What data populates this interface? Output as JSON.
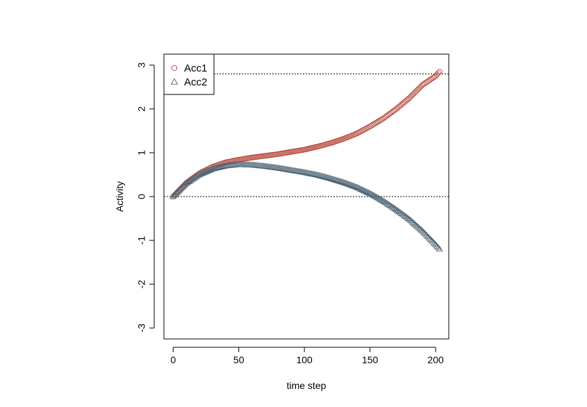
{
  "chart_data": {
    "type": "scatter",
    "xlabel": "time step",
    "ylabel": "Activity",
    "xlim": [
      -7,
      210
    ],
    "ylim": [
      -3.25,
      3.25
    ],
    "x_ticks": [
      0,
      50,
      100,
      150,
      200
    ],
    "y_ticks": [
      -3,
      -2,
      -1,
      0,
      1,
      2,
      3
    ],
    "x_tick_labels": [
      "0",
      "50",
      "100",
      "150",
      "200"
    ],
    "y_tick_labels": [
      "-3",
      "-2",
      "-1",
      "0",
      "1",
      "2",
      "3"
    ],
    "reference_lines": [
      2.8,
      0
    ],
    "legend_position": "top-left",
    "grid": false,
    "series": [
      {
        "name": "Acc1",
        "marker": "circle",
        "color": "#b5473a",
        "x": [
          0,
          10,
          20,
          30,
          40,
          50,
          60,
          70,
          80,
          90,
          100,
          110,
          120,
          130,
          140,
          150,
          160,
          170,
          180,
          190,
          200,
          203
        ],
        "y": [
          0.0,
          0.31,
          0.53,
          0.68,
          0.78,
          0.84,
          0.89,
          0.93,
          0.97,
          1.02,
          1.07,
          1.14,
          1.22,
          1.32,
          1.44,
          1.6,
          1.78,
          2.0,
          2.25,
          2.55,
          2.75,
          2.85
        ]
      },
      {
        "name": "Acc2",
        "marker": "triangle",
        "color": "#4a6272",
        "x": [
          0,
          10,
          20,
          30,
          40,
          50,
          60,
          70,
          80,
          90,
          100,
          110,
          120,
          130,
          140,
          150,
          160,
          170,
          180,
          190,
          200,
          203
        ],
        "y": [
          0.0,
          0.3,
          0.5,
          0.63,
          0.7,
          0.73,
          0.72,
          0.69,
          0.65,
          0.6,
          0.55,
          0.49,
          0.41,
          0.32,
          0.21,
          0.07,
          -0.1,
          -0.3,
          -0.52,
          -0.79,
          -1.1,
          -1.2
        ]
      }
    ]
  }
}
